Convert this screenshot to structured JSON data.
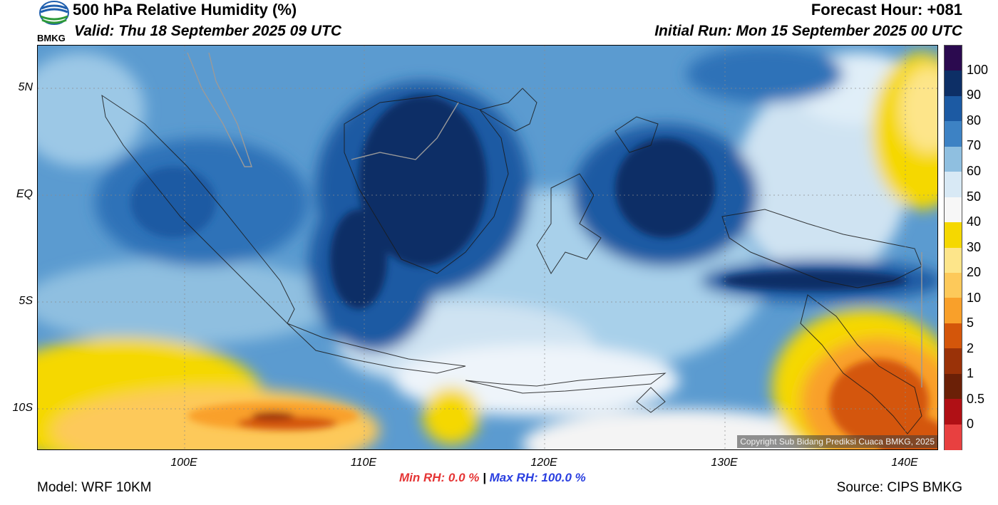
{
  "header": {
    "title": "500 hPa Relative Humidity (%)",
    "valid": "Valid: Thu 18 September 2025 09 UTC",
    "forecast_hour": "Forecast Hour: +081",
    "initial_run": "Initial Run: Mon 15 September 2025 00 UTC",
    "logo_text": "BMKG"
  },
  "map": {
    "lat_labels": [
      "5N",
      "EQ",
      "5S",
      "10S"
    ],
    "lon_labels": [
      "100E",
      "110E",
      "120E",
      "130E",
      "140E"
    ],
    "copyright": "Copyright Sub Bidang Prediksi Cuaca BMKG, 2025"
  },
  "colorbar": {
    "labels": [
      "100",
      "90",
      "80",
      "70",
      "60",
      "50",
      "40",
      "30",
      "20",
      "10",
      "5",
      "2",
      "1",
      "0.5",
      "0"
    ],
    "colors": [
      "#2b0a4f",
      "#0d2f66",
      "#1c5aa3",
      "#3d82c4",
      "#8fbfe0",
      "#d8e9f5",
      "#f7f7f7",
      "#f5d800",
      "#fde58a",
      "#fdc95a",
      "#f9a02a",
      "#d4560a",
      "#9a3208",
      "#6b2007",
      "#b01015",
      "#e84040"
    ]
  },
  "stats": {
    "min": "Min RH:   0.0 %",
    "separator": "|",
    "max": "Max RH: 100.0 %"
  },
  "footer": {
    "model": "Model: WRF 10KM",
    "source": "Source: CIPS BMKG"
  }
}
